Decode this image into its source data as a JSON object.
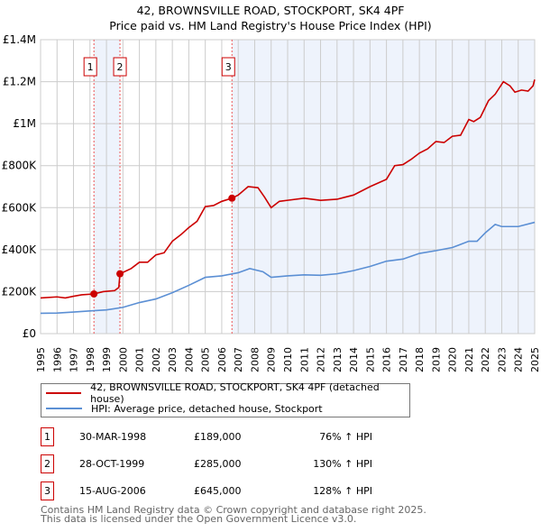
{
  "chart_data": {
    "type": "line",
    "title": "42, BROWNSVILLE ROAD, STOCKPORT, SK4 4PF",
    "subtitle": "Price paid vs. HM Land Registry's House Price Index (HPI)",
    "xlabel": "",
    "ylabel": "",
    "xlim": [
      1995,
      2025
    ],
    "ylim": [
      0,
      1400000
    ],
    "x_ticks": [
      "1995",
      "1996",
      "1997",
      "1998",
      "1999",
      "2000",
      "2001",
      "2002",
      "2003",
      "2004",
      "2005",
      "2006",
      "2007",
      "2008",
      "2009",
      "2010",
      "2011",
      "2012",
      "2013",
      "2014",
      "2015",
      "2016",
      "2017",
      "2018",
      "2019",
      "2020",
      "2021",
      "2022",
      "2023",
      "2024",
      "2025"
    ],
    "y_ticks": [
      {
        "v": 0,
        "label": "£0"
      },
      {
        "v": 200000,
        "label": "£200K"
      },
      {
        "v": 400000,
        "label": "£400K"
      },
      {
        "v": 600000,
        "label": "£600K"
      },
      {
        "v": 800000,
        "label": "£800K"
      },
      {
        "v": 1000000,
        "label": "£1M"
      },
      {
        "v": 1200000,
        "label": "£1.2M"
      },
      {
        "v": 1400000,
        "label": "£1.4M"
      }
    ],
    "grid": true,
    "series": [
      {
        "name": "42, BROWNSVILLE ROAD, STOCKPORT, SK4 4PF (detached house)",
        "color": "#cc0000",
        "x": [
          1995,
          1996,
          1996.5,
          1997,
          1997.5,
          1998.24,
          1998.8,
          1999.5,
          1999.75,
          1999.82,
          2000.5,
          2001,
          2001.5,
          2002,
          2002.5,
          2003,
          2003.5,
          2004,
          2004.5,
          2005,
          2005.5,
          2006,
          2006.62,
          2007,
          2007.6,
          2008.2,
          2008.6,
          2009,
          2009.5,
          2010,
          2011,
          2012,
          2013,
          2014,
          2015,
          2016,
          2016.5,
          2017,
          2017.5,
          2018,
          2018.5,
          2019,
          2019.5,
          2020,
          2020.5,
          2021,
          2021.3,
          2021.7,
          2022.2,
          2022.6,
          2023.1,
          2023.5,
          2023.8,
          2024.2,
          2024.6,
          2024.9,
          2025
        ],
        "values": [
          170000,
          175000,
          170000,
          178000,
          185000,
          189000,
          200000,
          205000,
          220000,
          285000,
          310000,
          340000,
          340000,
          375000,
          385000,
          440000,
          470000,
          505000,
          535000,
          605000,
          610000,
          630000,
          645000,
          660000,
          700000,
          695000,
          650000,
          600000,
          630000,
          635000,
          645000,
          635000,
          640000,
          660000,
          700000,
          735000,
          800000,
          805000,
          830000,
          860000,
          880000,
          915000,
          910000,
          940000,
          945000,
          1020000,
          1010000,
          1030000,
          1110000,
          1140000,
          1200000,
          1180000,
          1150000,
          1160000,
          1155000,
          1180000,
          1210000
        ]
      },
      {
        "name": "HPI: Average price, detached house, Stockport",
        "color": "#5b8fd4",
        "x": [
          1995,
          1996,
          1997,
          1998,
          1999,
          2000,
          2001,
          2002,
          2003,
          2004,
          2005,
          2006,
          2007,
          2007.7,
          2008.5,
          2009,
          2010,
          2011,
          2012,
          2013,
          2014,
          2015,
          2016,
          2017,
          2018,
          2019,
          2020,
          2021,
          2021.5,
          2022,
          2022.6,
          2023,
          2024,
          2025
        ],
        "values": [
          97000,
          98000,
          103000,
          108000,
          113000,
          125000,
          148000,
          165000,
          195000,
          230000,
          268000,
          275000,
          290000,
          310000,
          295000,
          268000,
          275000,
          280000,
          278000,
          285000,
          300000,
          320000,
          345000,
          355000,
          382000,
          395000,
          410000,
          440000,
          440000,
          480000,
          520000,
          510000,
          510000,
          530000
        ]
      }
    ],
    "sales": [
      {
        "num": "1",
        "x": 1998.24,
        "value": 189000,
        "date": "30-MAR-1998",
        "price": "£189,000",
        "hpi": "76% ↑ HPI"
      },
      {
        "num": "2",
        "x": 1999.82,
        "value": 285000,
        "date": "28-OCT-1999",
        "price": "£285,000",
        "hpi": "130% ↑ HPI"
      },
      {
        "num": "3",
        "x": 2006.62,
        "value": 645000,
        "date": "15-AUG-2006",
        "price": "£645,000",
        "hpi": "128% ↑ HPI"
      }
    ],
    "legend_position": "below"
  },
  "footer": {
    "line1": "Contains HM Land Registry data © Crown copyright and database right 2025.",
    "line2": "This data is licensed under the Open Government Licence v3.0."
  }
}
